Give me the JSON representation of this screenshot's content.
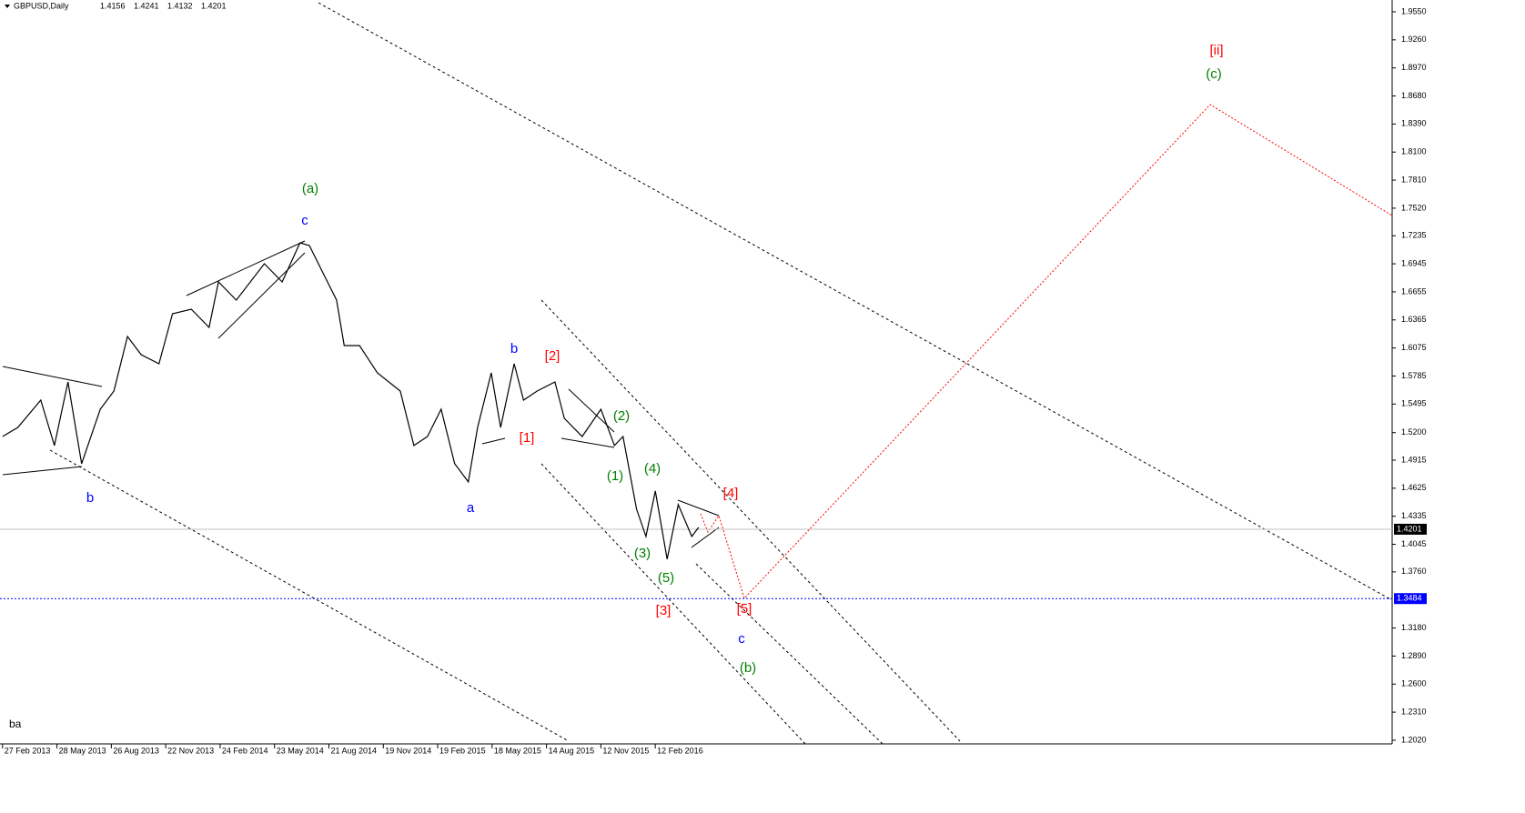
{
  "chart_data": {
    "type": "line",
    "symbol": "GBPUSD,Daily",
    "ohlc": [
      1.4156,
      1.4241,
      1.4132,
      1.4201
    ],
    "corner_text": "ba",
    "color": "#000000",
    "x": [
      0,
      18,
      45,
      61,
      77,
      93,
      115,
      131,
      147,
      163,
      184,
      200,
      222,
      243,
      254,
      275,
      308,
      329,
      350,
      361,
      377,
      393,
      402,
      420,
      441,
      468,
      484,
      500,
      516,
      532,
      548,
      559,
      575,
      586,
      602,
      613,
      629,
      650,
      661,
      682,
      704,
      720,
      730,
      746,
      757,
      768,
      782,
      795,
      811,
      819
    ],
    "values": [
      1.516,
      1.5254,
      1.5536,
      1.5066,
      1.5724,
      1.4878,
      1.5442,
      1.563,
      1.6194,
      1.6006,
      1.5912,
      1.6429,
      1.6476,
      1.6288,
      1.6758,
      1.657,
      1.6946,
      1.6758,
      1.7162,
      1.7134,
      1.6852,
      1.657,
      1.61,
      1.61,
      1.5818,
      1.563,
      1.5066,
      1.516,
      1.5442,
      1.4878,
      1.469,
      1.5254,
      1.5818,
      1.5254,
      1.5912,
      1.5536,
      1.563,
      1.5724,
      1.5348,
      1.516,
      1.5442,
      1.5066,
      1.516,
      1.4408,
      1.4126,
      1.4596,
      1.3891,
      1.4455,
      1.4126,
      1.422
    ],
    "xlim": [
      -3,
      1635
    ],
    "xticks": [
      {
        "value": 0,
        "label": "27 Feb 2013"
      },
      {
        "value": 64,
        "label": "28 May 2013"
      },
      {
        "value": 128,
        "label": "26 Aug 2013"
      },
      {
        "value": 192,
        "label": "22 Nov 2013"
      },
      {
        "value": 256,
        "label": "24 Feb 2014"
      },
      {
        "value": 320,
        "label": "23 May 2014"
      },
      {
        "value": 384,
        "label": "21 Aug 2014"
      },
      {
        "value": 448,
        "label": "19 Nov 2014"
      },
      {
        "value": 512,
        "label": "19 Feb 2015"
      },
      {
        "value": 576,
        "label": "18 May 2015"
      },
      {
        "value": 640,
        "label": "14 Aug 2015"
      },
      {
        "value": 704,
        "label": "12 Nov 2015"
      },
      {
        "value": 768,
        "label": "12 Feb 2016"
      }
    ],
    "ylim": [
      1.1982,
      1.9672
    ],
    "yticks": [
      {
        "value": 1.955,
        "label": "1.9550"
      },
      {
        "value": 1.926,
        "label": "1.9260"
      },
      {
        "value": 1.897,
        "label": "1.8970"
      },
      {
        "value": 1.868,
        "label": "1.8680"
      },
      {
        "value": 1.839,
        "label": "1.8390"
      },
      {
        "value": 1.81,
        "label": "1.8100"
      },
      {
        "value": 1.781,
        "label": "1.7810"
      },
      {
        "value": 1.752,
        "label": "1.7520"
      },
      1.7235,
      1.6945,
      1.6655,
      1.6365,
      1.6075,
      1.5785,
      1.5495,
      {
        "value": 1.52,
        "label": "1.5200"
      },
      1.4915,
      1.4625,
      1.4335,
      1.4045,
      {
        "value": 1.376,
        "label": "1.3760"
      },
      {
        "value": 1.318,
        "label": "1.3180"
      },
      {
        "value": 1.289,
        "label": "1.2890"
      },
      {
        "value": 1.26,
        "label": "1.2600"
      },
      {
        "value": 1.231,
        "label": "1.2310"
      },
      {
        "value": 1.202,
        "label": "1.2020"
      }
    ],
    "hlines": [
      {
        "value": 1.4201,
        "color": "#c0c0c0",
        "label_bg": "#000000"
      },
      {
        "value": 1.3484,
        "color": "#0000ff",
        "label_bg": "#0000ff"
      }
    ],
    "annotations": [
      {
        "text": "(a)",
        "color": "#008000"
      },
      {
        "text": "c",
        "color": "#0000ff"
      },
      {
        "text": "b",
        "color": "#0000ff"
      },
      {
        "text": "a",
        "color": "#0000ff"
      },
      {
        "text": "b",
        "color": "#0000ff"
      },
      {
        "text": "[2]",
        "color": "#ff0000"
      },
      {
        "text": "[1]",
        "color": "#ff0000"
      },
      {
        "text": "(2)",
        "color": "#008000"
      },
      {
        "text": "(1)",
        "color": "#008000"
      },
      {
        "text": "(4)",
        "color": "#008000"
      },
      {
        "text": "[4]",
        "color": "#ff0000"
      },
      {
        "text": "(3)",
        "color": "#008000"
      },
      {
        "text": "(5)",
        "color": "#008000"
      },
      {
        "text": "[3]",
        "color": "#ff0000"
      },
      {
        "text": "[5]",
        "color": "#ff0000"
      },
      {
        "text": "c",
        "color": "#0000ff"
      },
      {
        "text": "(b)",
        "color": "#008000"
      },
      {
        "text": "[ii]",
        "color": "#ff0000"
      },
      {
        "text": "(c)",
        "color": "#008000"
      }
    ]
  }
}
